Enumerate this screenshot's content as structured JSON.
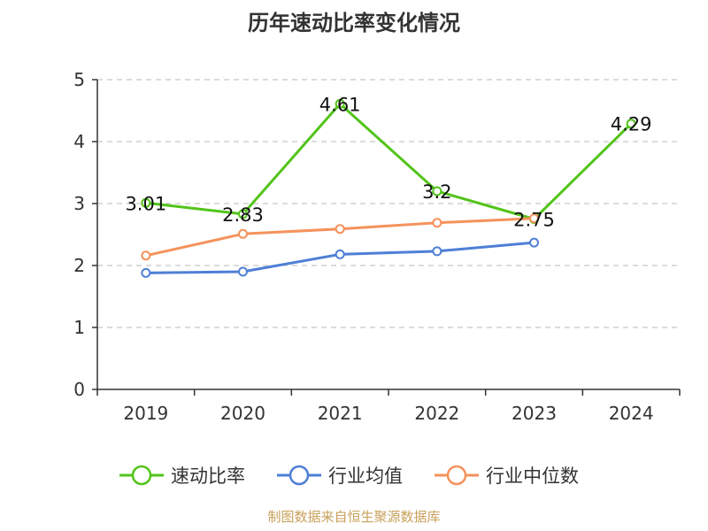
{
  "chart_data": {
    "type": "line",
    "title": "历年速动比率变化情况",
    "categories": [
      "2019",
      "2020",
      "2021",
      "2022",
      "2023",
      "2024"
    ],
    "ylim": [
      0,
      5
    ],
    "yticks": [
      "0",
      "1",
      "2",
      "3",
      "4",
      "5"
    ],
    "grid": true,
    "legend_position": "bottom",
    "series": [
      {
        "name": "速动比率",
        "color": "#52c41a",
        "values": [
          3.01,
          2.83,
          4.61,
          3.2,
          2.75,
          4.29
        ],
        "labels": [
          "3.01",
          "2.83",
          "4.61",
          "3.2",
          "2.75",
          "4.29"
        ]
      },
      {
        "name": "行业均值",
        "color": "#4e7fd6",
        "values": [
          1.88,
          1.9,
          2.18,
          2.23,
          2.37,
          null
        ]
      },
      {
        "name": "行业中位数",
        "color": "#f5925b",
        "values": [
          2.16,
          2.51,
          2.59,
          2.69,
          2.76,
          null
        ]
      }
    ]
  },
  "footer": {
    "source": "制图数据来自恒生聚源数据库"
  }
}
